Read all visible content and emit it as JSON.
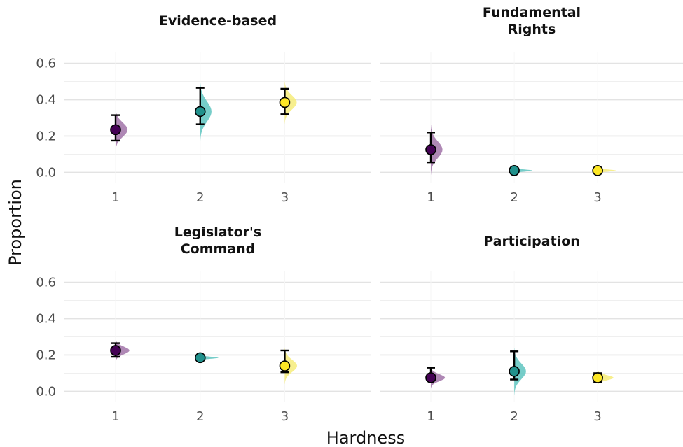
{
  "chart_data": {
    "type": "scatter",
    "xlabel": "Hardness",
    "ylabel": "Proportion",
    "ylim": [
      -0.06,
      0.66
    ],
    "y_ticks": [
      "0.0",
      "0.2",
      "0.4",
      "0.6"
    ],
    "x_ticks": [
      "1",
      "2",
      "3"
    ],
    "grid": true,
    "legend": "none",
    "colors": {
      "1": "#440154",
      "2": "#21918c",
      "3": "#fde725"
    },
    "half_violin_colors": {
      "1": "#a173a8",
      "2": "#5ec4bf",
      "3": "#f6ec7a"
    },
    "panels": [
      {
        "title_lines": [
          "Evidence-based"
        ],
        "points": [
          {
            "x": 1,
            "y": 0.235,
            "lower": 0.175,
            "upper": 0.315
          },
          {
            "x": 2,
            "y": 0.335,
            "lower": 0.265,
            "upper": 0.465
          },
          {
            "x": 3,
            "y": 0.385,
            "lower": 0.32,
            "upper": 0.46
          }
        ]
      },
      {
        "title_lines": [
          "Fundamental",
          "Rights"
        ],
        "points": [
          {
            "x": 1,
            "y": 0.125,
            "lower": 0.055,
            "upper": 0.22
          },
          {
            "x": 2,
            "y": 0.01,
            "lower": 0.0,
            "upper": 0.02
          },
          {
            "x": 3,
            "y": 0.01,
            "lower": 0.0,
            "upper": 0.02
          }
        ]
      },
      {
        "title_lines": [
          "Legislator's",
          "Command"
        ],
        "points": [
          {
            "x": 1,
            "y": 0.225,
            "lower": 0.19,
            "upper": 0.265
          },
          {
            "x": 2,
            "y": 0.185,
            "lower": 0.175,
            "upper": 0.195
          },
          {
            "x": 3,
            "y": 0.14,
            "lower": 0.105,
            "upper": 0.225
          }
        ]
      },
      {
        "title_lines": [
          "Participation"
        ],
        "points": [
          {
            "x": 1,
            "y": 0.075,
            "lower": 0.06,
            "upper": 0.13
          },
          {
            "x": 2,
            "y": 0.11,
            "lower": 0.065,
            "upper": 0.22
          },
          {
            "x": 3,
            "y": 0.075,
            "lower": 0.05,
            "upper": 0.1
          }
        ]
      }
    ]
  }
}
